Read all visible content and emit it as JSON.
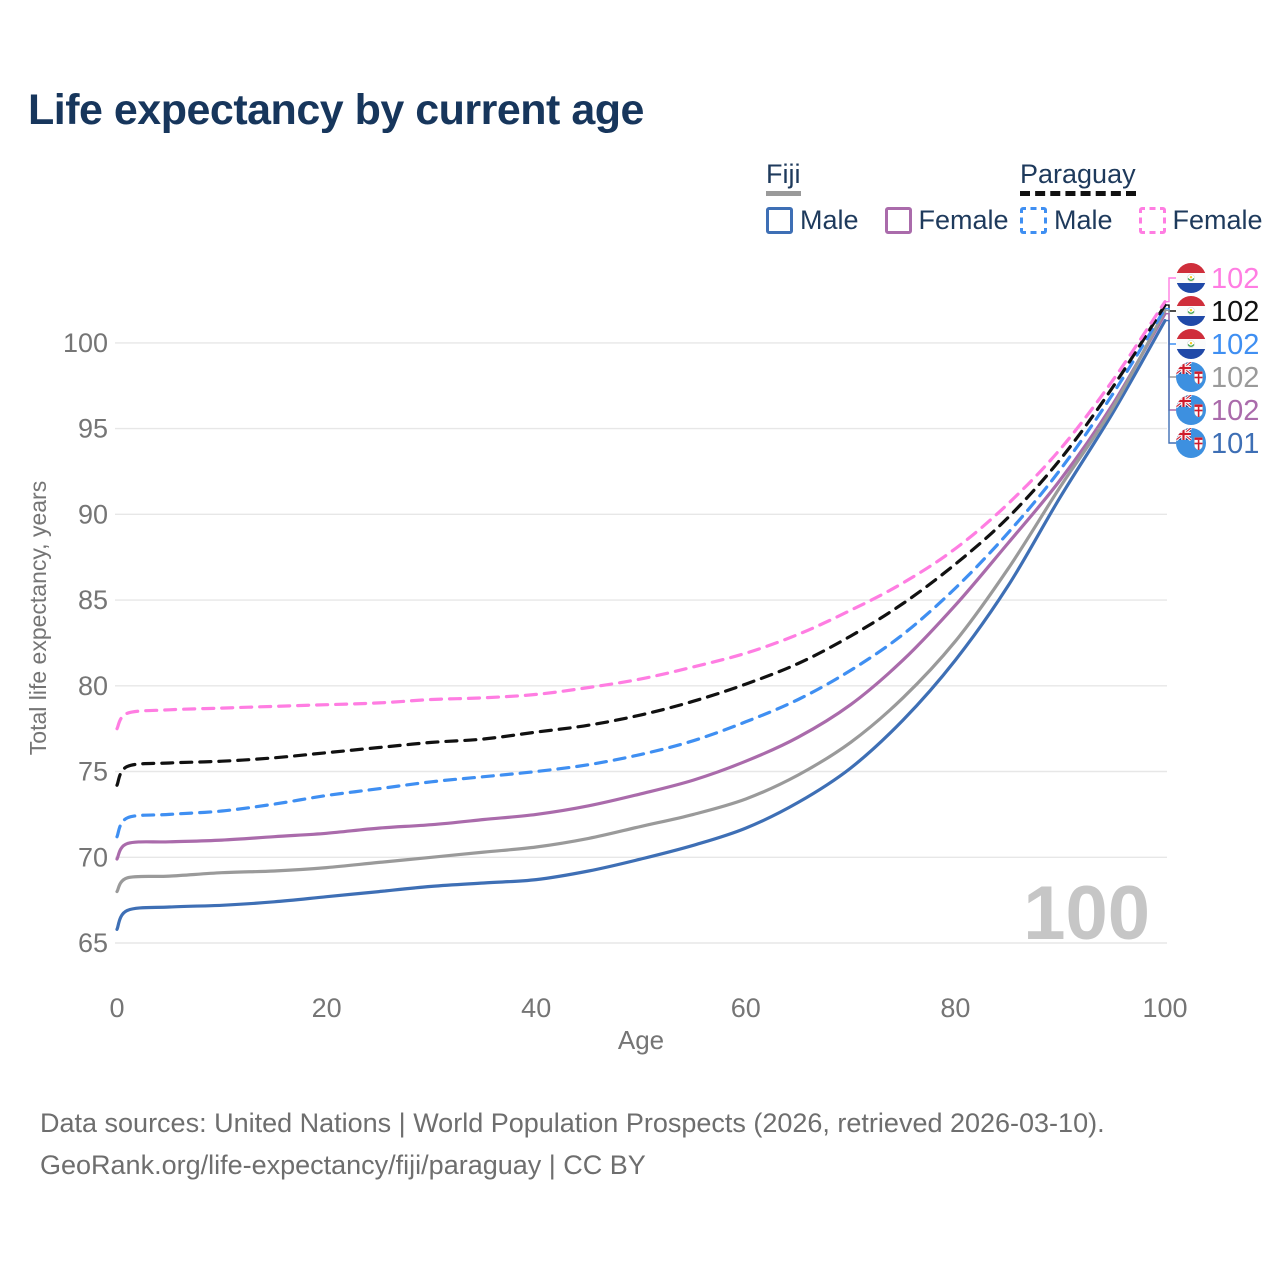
{
  "title": "Life expectancy by current age",
  "legend": {
    "fiji": {
      "title": "Fiji",
      "male_label": "Male",
      "female_label": "Female"
    },
    "paraguay": {
      "title": "Paraguay",
      "male_label": "Male",
      "female_label": "Female"
    }
  },
  "chart_data": {
    "type": "line",
    "title": "Life expectancy by current age",
    "xlabel": "Age",
    "ylabel": "Total life expectancy, years",
    "xlim": [
      0,
      100
    ],
    "ylim": [
      63.8,
      103.5
    ],
    "x_ticks": [
      0,
      20,
      40,
      60,
      80,
      100
    ],
    "y_ticks": [
      65,
      70,
      75,
      80,
      85,
      90,
      95,
      100
    ],
    "grid": true,
    "legend_position": "top-right",
    "watermark": "100",
    "x": [
      0,
      1,
      5,
      10,
      15,
      20,
      25,
      30,
      35,
      40,
      45,
      50,
      55,
      60,
      65,
      70,
      75,
      80,
      85,
      90,
      95,
      100
    ],
    "series": [
      {
        "name": "Paraguay Female",
        "country": "Paraguay",
        "sex": "Female",
        "color": "#ff7de2",
        "dashed": true,
        "flag_icon": "paraguay-flag-icon",
        "end_label": "102",
        "values": [
          77.5,
          78.4,
          78.6,
          78.7,
          78.8,
          78.9,
          79.0,
          79.2,
          79.3,
          79.5,
          79.9,
          80.4,
          81.1,
          81.9,
          83.0,
          84.4,
          86.0,
          88.0,
          90.6,
          93.8,
          97.8,
          102.4
        ]
      },
      {
        "name": "Paraguay both sexes",
        "country": "Paraguay",
        "sex": "Both",
        "color": "#111111",
        "dashed": true,
        "flag_icon": "paraguay-flag-icon",
        "end_label": "102",
        "values": [
          74.2,
          75.3,
          75.5,
          75.6,
          75.8,
          76.1,
          76.4,
          76.7,
          76.9,
          77.3,
          77.7,
          78.3,
          79.1,
          80.1,
          81.3,
          82.9,
          84.8,
          87.1,
          89.8,
          93.2,
          97.4,
          102.2
        ]
      },
      {
        "name": "Paraguay Male",
        "country": "Paraguay",
        "sex": "Male",
        "color": "#3f8ff2",
        "dashed": true,
        "flag_icon": "paraguay-flag-icon",
        "end_label": "102",
        "values": [
          71.2,
          72.3,
          72.5,
          72.7,
          73.1,
          73.6,
          74.0,
          74.4,
          74.7,
          75.0,
          75.4,
          76.0,
          76.8,
          77.9,
          79.2,
          80.9,
          83.0,
          85.7,
          88.9,
          92.6,
          97.0,
          102.0
        ]
      },
      {
        "name": "Fiji both sexes",
        "country": "Fiji",
        "sex": "Both",
        "color": "#9a9a9a",
        "dashed": false,
        "flag_icon": "fiji-flag-icon",
        "end_label": "102",
        "values": [
          68.0,
          68.8,
          68.9,
          69.1,
          69.2,
          69.4,
          69.7,
          70.0,
          70.3,
          70.6,
          71.1,
          71.8,
          72.5,
          73.4,
          74.8,
          76.7,
          79.3,
          82.6,
          86.8,
          91.6,
          96.2,
          101.9
        ]
      },
      {
        "name": "Fiji Female",
        "country": "Fiji",
        "sex": "Female",
        "color": "#aa6bab",
        "dashed": false,
        "flag_icon": "fiji-flag-icon",
        "end_label": "102",
        "values": [
          69.9,
          70.8,
          70.9,
          71.0,
          71.2,
          71.4,
          71.7,
          71.9,
          72.2,
          72.5,
          73.0,
          73.7,
          74.5,
          75.6,
          77.0,
          78.9,
          81.5,
          84.7,
          88.3,
          92.0,
          96.4,
          101.7
        ]
      },
      {
        "name": "Fiji Male",
        "country": "Fiji",
        "sex": "Male",
        "color": "#3e6fb5",
        "dashed": false,
        "flag_icon": "fiji-flag-icon",
        "end_label": "101",
        "values": [
          65.8,
          66.9,
          67.1,
          67.2,
          67.4,
          67.7,
          68.0,
          68.3,
          68.5,
          68.7,
          69.2,
          69.9,
          70.7,
          71.7,
          73.2,
          75.2,
          78.0,
          81.5,
          85.8,
          91.0,
          95.9,
          101.3
        ]
      }
    ]
  },
  "footer": {
    "line1": "Data sources: United Nations | World Population Prospects (2026, retrieved 2026-03-10).",
    "line2": "GeoRank.org/life-expectancy/fiji/paraguay | CC BY"
  }
}
